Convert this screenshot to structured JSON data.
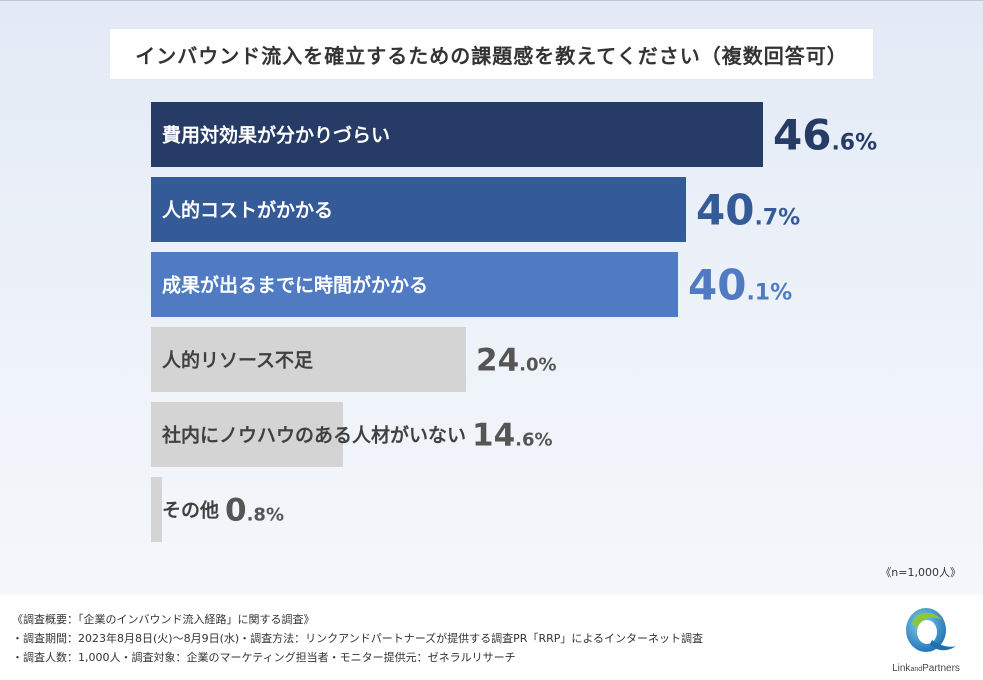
{
  "title": "インバウンド流入を確立するための課題感を教えてください（複数回答可）",
  "sample_note": "《n=1,000人》",
  "footer": {
    "line1": "《調査概要：「企業のインバウンド流入経路」に関する調査》",
    "line2": "・調査期間：2023年8月8日(火)〜8月9日(水)・調査方法：リンクアンドパートナーズが提供する調査PR「RRP」によるインターネット調査",
    "line3": "・調査人数：1,000人・調査対象：企業のマーケティング担当者・モニター提供元：ゼネラルリサーチ"
  },
  "logo": {
    "main": "Link",
    "mid": "and",
    "end": "Partners"
  },
  "chart_data": {
    "type": "bar",
    "orientation": "horizontal",
    "title": "インバウンド流入を確立するための課題感を教えてください（複数回答可）",
    "unit": "%",
    "xlim": [
      0,
      100
    ],
    "categories": [
      "費用対効果が分かりづらい",
      "人的コストがかかる",
      "成果が出るまでに時間がかかる",
      "人的リソース不足",
      "社内にノウハウのある人材がいない",
      "その他"
    ],
    "values": [
      46.6,
      40.7,
      40.1,
      24.0,
      14.6,
      0.8
    ],
    "bar_colors": [
      "#263c66",
      "#355a98",
      "#507bc2",
      "#d4d4d4",
      "#d4d4d4",
      "#d4d4d4"
    ],
    "label_colors": [
      "#ffffff",
      "#ffffff",
      "#ffffff",
      "#404040",
      "#404040",
      "#404040"
    ],
    "value_colors": [
      "#263c66",
      "#355a98",
      "#507bc2",
      "#555555",
      "#555555",
      "#555555"
    ]
  }
}
